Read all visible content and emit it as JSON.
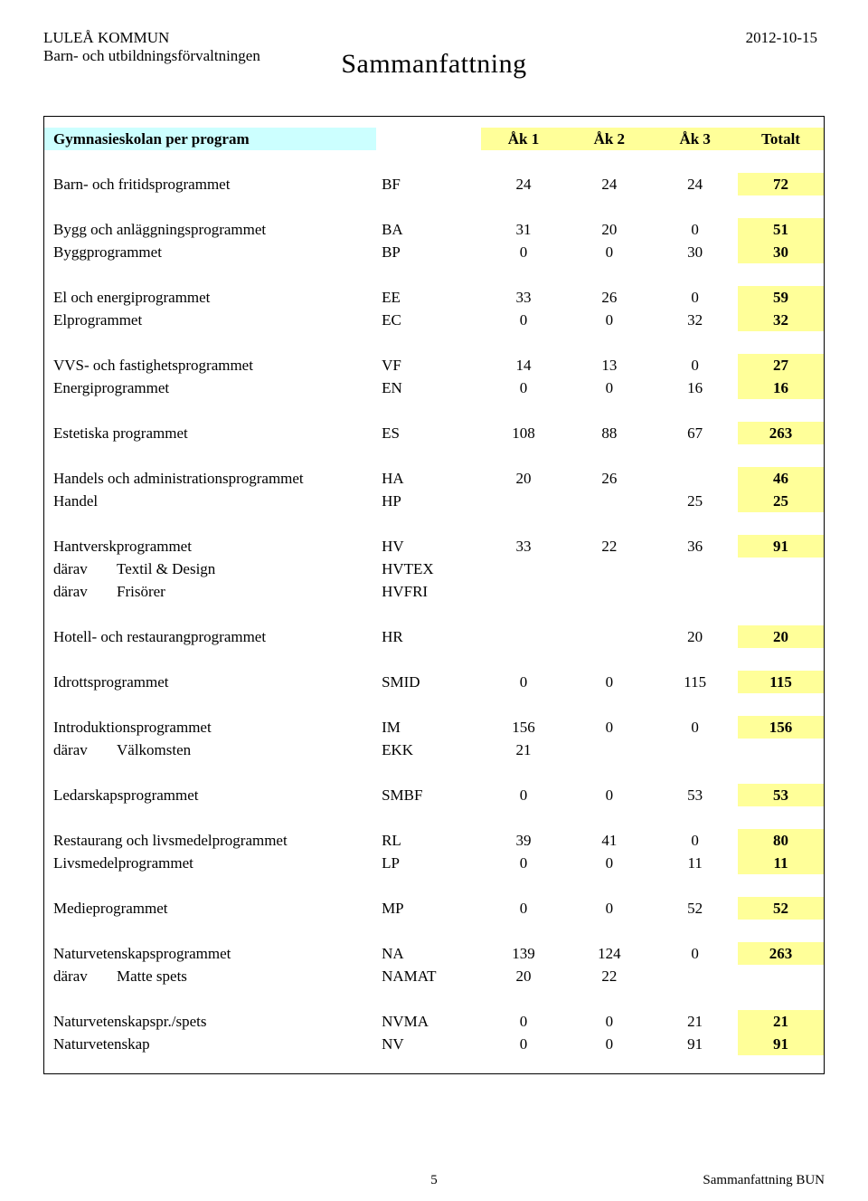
{
  "meta": {
    "org_line1": "LULEÅ KOMMUN",
    "org_line2": "Barn- och utbildningsförvaltningen",
    "date": "2012-10-15",
    "title_letter": "S",
    "title_rest": "ammanfattning",
    "footer_pageno": "5",
    "footer_right": "Sammanfattning BUN"
  },
  "table": {
    "header": {
      "title": "Gymnasieskolan per program",
      "cols": [
        "Åk 1",
        "Åk 2",
        "Åk 3",
        "Totalt"
      ]
    },
    "rows": [
      {
        "type": "spacer"
      },
      {
        "type": "data",
        "name": "Barn- och fritidsprogrammet",
        "code": "BF",
        "v": [
          "24",
          "24",
          "24"
        ],
        "total": "72"
      },
      {
        "type": "spacer"
      },
      {
        "type": "data",
        "name": "Bygg och anläggningsprogrammet",
        "code": "BA",
        "v": [
          "31",
          "20",
          "0"
        ],
        "total": "51"
      },
      {
        "type": "data",
        "name": "Byggprogrammet",
        "code": "BP",
        "v": [
          "0",
          "0",
          "30"
        ],
        "total": "30"
      },
      {
        "type": "spacer"
      },
      {
        "type": "data",
        "name": "El och energiprogrammet",
        "code": "EE",
        "v": [
          "33",
          "26",
          "0"
        ],
        "total": "59"
      },
      {
        "type": "data",
        "name": "Elprogrammet",
        "code": "EC",
        "v": [
          "0",
          "0",
          "32"
        ],
        "total": "32"
      },
      {
        "type": "spacer"
      },
      {
        "type": "data",
        "name": "VVS- och fastighetsprogrammet",
        "code": "VF",
        "v": [
          "14",
          "13",
          "0"
        ],
        "total": "27"
      },
      {
        "type": "data",
        "name": "Energiprogrammet",
        "code": "EN",
        "v": [
          "0",
          "0",
          "16"
        ],
        "total": "16"
      },
      {
        "type": "spacer"
      },
      {
        "type": "data",
        "name": "Estetiska programmet",
        "code": "ES",
        "v": [
          "108",
          "88",
          "67"
        ],
        "total": "263"
      },
      {
        "type": "spacer"
      },
      {
        "type": "data",
        "name": "Handels och administrationsprogrammet",
        "code": "HA",
        "v": [
          "20",
          "26",
          ""
        ],
        "total": "46"
      },
      {
        "type": "data",
        "name": "Handel",
        "code": "HP",
        "v": [
          "",
          "",
          "25"
        ],
        "total": "25"
      },
      {
        "type": "spacer"
      },
      {
        "type": "data",
        "name": "Hantverskprogrammet",
        "code": "HV",
        "v": [
          "33",
          "22",
          "36"
        ],
        "total": "91"
      },
      {
        "type": "sub",
        "label": "därav",
        "sub": "Textil & Design",
        "code": "HVTEX"
      },
      {
        "type": "sub",
        "label": "därav",
        "sub": "Frisörer",
        "code": "HVFRI"
      },
      {
        "type": "spacer"
      },
      {
        "type": "data",
        "name": "Hotell- och restaurangprogrammet",
        "code": "HR",
        "v": [
          "",
          "",
          "20"
        ],
        "total": "20"
      },
      {
        "type": "spacer"
      },
      {
        "type": "data",
        "name": "Idrottsprogrammet",
        "code": "SMID",
        "v": [
          "0",
          "0",
          "115"
        ],
        "total": "115"
      },
      {
        "type": "spacer"
      },
      {
        "type": "data",
        "name": "Introduktionsprogrammet",
        "code": "IM",
        "v": [
          "156",
          "0",
          "0"
        ],
        "total": "156"
      },
      {
        "type": "sub",
        "label": "därav",
        "sub": "Välkomsten",
        "code": "EKK",
        "v": [
          "21",
          "",
          ""
        ]
      },
      {
        "type": "spacer"
      },
      {
        "type": "data",
        "name": "Ledarskapsprogrammet",
        "code": "SMBF",
        "v": [
          "0",
          "0",
          "53"
        ],
        "total": "53"
      },
      {
        "type": "spacer"
      },
      {
        "type": "data",
        "name": "Restaurang och livsmedelprogrammet",
        "code": "RL",
        "v": [
          "39",
          "41",
          "0"
        ],
        "total": "80"
      },
      {
        "type": "data",
        "name": "Livsmedelprogrammet",
        "code": "LP",
        "v": [
          "0",
          "0",
          "11"
        ],
        "total": "11"
      },
      {
        "type": "spacer"
      },
      {
        "type": "data",
        "name": "Medieprogrammet",
        "code": "MP",
        "v": [
          "0",
          "0",
          "52"
        ],
        "total": "52"
      },
      {
        "type": "spacer"
      },
      {
        "type": "data",
        "name": "Naturvetenskapsprogrammet",
        "code": "NA",
        "v": [
          "139",
          "124",
          "0"
        ],
        "total": "263"
      },
      {
        "type": "sub",
        "label": "därav",
        "sub": "Matte spets",
        "code": "NAMAT",
        "v": [
          "20",
          "22",
          ""
        ]
      },
      {
        "type": "spacer"
      },
      {
        "type": "data",
        "name": "Naturvetenskapspr./spets",
        "code": "NVMA",
        "v": [
          "0",
          "0",
          "21"
        ],
        "total": "21"
      },
      {
        "type": "data",
        "name": "Naturvetenskap",
        "code": "NV",
        "v": [
          "0",
          "0",
          "91"
        ],
        "total": "91"
      }
    ]
  }
}
